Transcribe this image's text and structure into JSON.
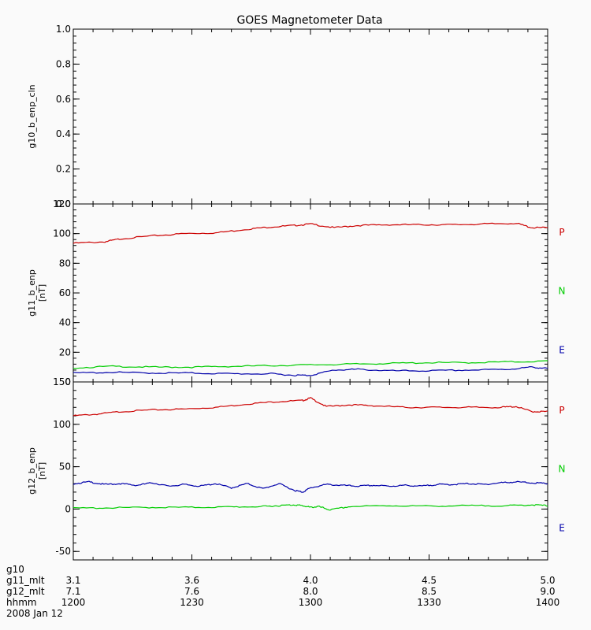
{
  "title": "GOES Magnetometer Data",
  "colors": {
    "P": "#cc0000",
    "N": "#00cc00",
    "E": "#0000aa"
  },
  "footer": {
    "labels": [
      "g10",
      "g11_mlt",
      "g12_mlt",
      "hhmm",
      "2008 Jan 12"
    ],
    "g11_mlt": [
      "3.1",
      "3.6",
      "4.0",
      "4.5",
      "5.0"
    ],
    "g12_mlt": [
      "7.1",
      "7.6",
      "8.0",
      "8.5",
      "9.0"
    ],
    "hhmm": [
      "1200",
      "1230",
      "1300",
      "1330",
      "1400"
    ]
  },
  "chart_data": [
    {
      "type": "line",
      "ylabel": "g10_b_enp_cln",
      "ylim": [
        0,
        1
      ],
      "yticks": [
        "0.0",
        "0.2",
        "0.4",
        "0.6",
        "0.8",
        "1.0"
      ],
      "xlim_minutes": [
        0,
        120
      ],
      "series": []
    },
    {
      "type": "line",
      "ylabel": "g11_b_enp",
      "yunit": "[nT]",
      "ylim": [
        0,
        120
      ],
      "yticks": [
        "0",
        "20",
        "40",
        "60",
        "80",
        "100",
        "120"
      ],
      "xlim_minutes": [
        0,
        120
      ],
      "series": [
        {
          "name": "P",
          "x": [
            0,
            8,
            12,
            20,
            28,
            36,
            44,
            50,
            56,
            60,
            66,
            72,
            80,
            88,
            96,
            104,
            112,
            116,
            120
          ],
          "values": [
            93.5,
            94.5,
            96.5,
            98.5,
            100,
            100.5,
            103,
            104.5,
            105.5,
            106.5,
            104,
            105.5,
            106,
            106,
            106,
            106.5,
            107,
            104,
            104
          ]
        },
        {
          "name": "N",
          "x": [
            0,
            10,
            20,
            30,
            40,
            50,
            60,
            70,
            80,
            90,
            100,
            110,
            120
          ],
          "values": [
            9.5,
            10.5,
            10,
            10,
            10.5,
            11,
            11.5,
            12,
            12.5,
            13,
            13,
            13.5,
            14
          ]
        },
        {
          "name": "E",
          "x": [
            0,
            10,
            20,
            30,
            40,
            50,
            56,
            60,
            66,
            72,
            80,
            90,
            100,
            110,
            116,
            120
          ],
          "values": [
            6,
            6.5,
            6,
            6,
            5.5,
            5.5,
            4.5,
            4.5,
            8,
            8.5,
            7.5,
            7.5,
            8,
            8.5,
            10,
            9
          ]
        }
      ],
      "legend": [
        "P",
        "N",
        "E"
      ]
    },
    {
      "type": "line",
      "ylabel": "g12_b_enp",
      "yunit": "[nT]",
      "ylim": [
        -60,
        150
      ],
      "yticks": [
        "-50",
        "0",
        "50",
        "100",
        "150"
      ],
      "yticks_values": [
        -50,
        0,
        50,
        100,
        150
      ],
      "xlim_minutes": [
        0,
        120
      ],
      "series": [
        {
          "name": "P",
          "x": [
            0,
            6,
            12,
            20,
            28,
            36,
            44,
            52,
            58,
            60,
            64,
            70,
            76,
            84,
            92,
            100,
            108,
            112,
            116,
            120
          ],
          "values": [
            110,
            112,
            115,
            117,
            118,
            120,
            124,
            127,
            128,
            131,
            121,
            123,
            122,
            120,
            120,
            120,
            120,
            121,
            115,
            115
          ]
        },
        {
          "name": "E",
          "x": [
            0,
            4,
            8,
            12,
            16,
            20,
            24,
            28,
            32,
            36,
            40,
            44,
            48,
            52,
            56,
            58,
            60,
            64,
            68,
            72,
            76,
            80,
            84,
            88,
            92,
            96,
            100,
            104,
            108,
            112,
            116,
            120
          ],
          "values": [
            30,
            32,
            29,
            30,
            28,
            31,
            27,
            29,
            27,
            30,
            25,
            30,
            24,
            30,
            22,
            20,
            25,
            29,
            28,
            27,
            28,
            27,
            28,
            27,
            29,
            29,
            30,
            29,
            31,
            32,
            31,
            30
          ]
        },
        {
          "name": "N",
          "x": [
            0,
            10,
            20,
            30,
            40,
            48,
            52,
            56,
            58,
            60,
            62,
            65,
            70,
            80,
            90,
            100,
            110,
            116,
            120
          ],
          "values": [
            1,
            1.5,
            2,
            2,
            2.5,
            3,
            4,
            5,
            4,
            2,
            3,
            -1,
            3,
            4,
            3.5,
            4,
            4,
            5,
            4
          ]
        }
      ],
      "legend": [
        "P",
        "N",
        "E"
      ]
    }
  ]
}
